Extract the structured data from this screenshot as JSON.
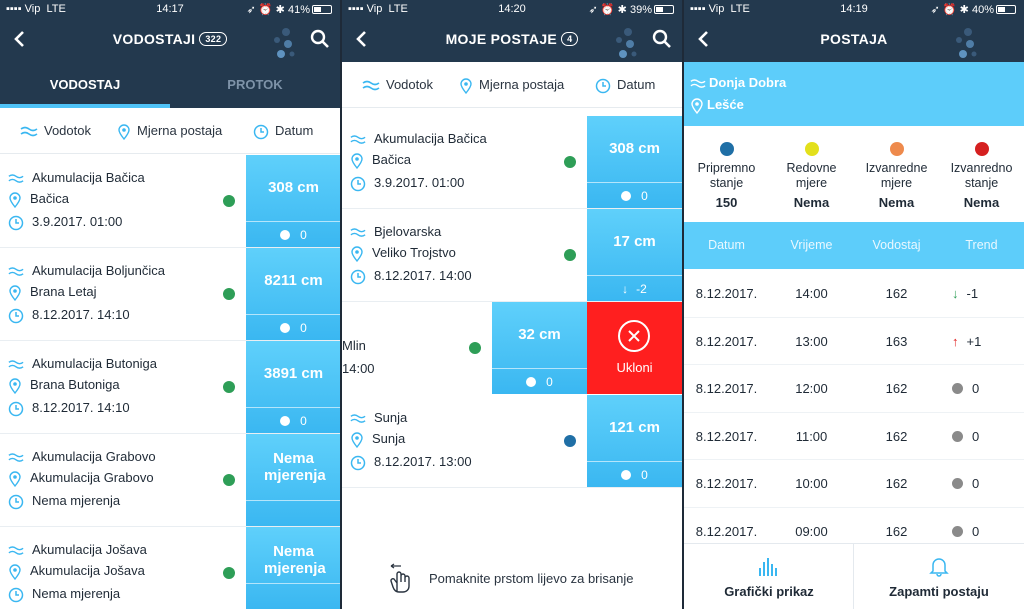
{
  "s1": {
    "status": {
      "carrier": "Vip",
      "network": "LTE",
      "time": "14:17",
      "battery": "41%"
    },
    "title": "VODOSTAJI",
    "count": "322",
    "tabs": [
      "VODOSTAJ",
      "PROTOK"
    ],
    "filters": [
      "Vodotok",
      "Mjerna postaja",
      "Datum"
    ],
    "rows": [
      {
        "river": "Akumulacija Bačica",
        "station": "Bačica",
        "date": "3.9.2017. 01:00",
        "value": "308 cm",
        "trend": "0",
        "status_color": "#2e9e57"
      },
      {
        "river": "Akumulacija Boljunčica",
        "station": "Brana Letaj",
        "date": "8.12.2017. 14:10",
        "value": "8211 cm",
        "trend": "0",
        "status_color": "#2e9e57"
      },
      {
        "river": "Akumulacija Butoniga",
        "station": "Brana Butoniga",
        "date": "8.12.2017. 14:10",
        "value": "3891 cm",
        "trend": "0",
        "status_color": "#2e9e57"
      },
      {
        "river": "Akumulacija Grabovo",
        "station": "Akumulacija Grabovo",
        "date": "Nema mjerenja",
        "value": "Nema mjerenja",
        "trend": "",
        "status_color": "#2e9e57"
      },
      {
        "river": "Akumulacija Jošava",
        "station": "Akumulacija Jošava",
        "date": "Nema mjerenja",
        "value": "Nema mjerenja",
        "trend": "",
        "status_color": "#2e9e57"
      }
    ]
  },
  "s2": {
    "status": {
      "carrier": "Vip",
      "network": "LTE",
      "time": "14:20",
      "battery": "39%"
    },
    "title": "MOJE POSTAJE",
    "count": "4",
    "filters": [
      "Vodotok",
      "Mjerna postaja",
      "Datum"
    ],
    "rows": [
      {
        "river": "Akumulacija Bačica",
        "station": "Bačica",
        "date": "3.9.2017. 01:00",
        "value": "308 cm",
        "trend": "0",
        "status_color": "#2e9e57"
      },
      {
        "river": "Bjelovarska",
        "station": "Veliko Trojstvo",
        "date": "8.12.2017. 14:00",
        "value": "17 cm",
        "trend": "-2",
        "status_color": "#2e9e57"
      },
      {
        "river": "Mlin",
        "station": "",
        "date": "14:00",
        "value": "32 cm",
        "trend": "0",
        "status_color": "#2e9e57"
      },
      {
        "river": "Sunja",
        "station": "Sunja",
        "date": "8.12.2017. 13:00",
        "value": "121 cm",
        "trend": "0",
        "status_color": "#1f6fa6"
      }
    ],
    "remove_label": "Ukloni",
    "hint": "Pomaknite prstom lijevo za brisanje"
  },
  "s3": {
    "status": {
      "carrier": "Vip",
      "network": "LTE",
      "time": "14:19",
      "battery": "40%"
    },
    "title": "POSTAJA",
    "river": "Donja Dobra",
    "station": "Lešće",
    "levels": [
      {
        "label1": "Pripremno",
        "label2": "stanje",
        "value": "150",
        "color": "#1f6fa6"
      },
      {
        "label1": "Redovne",
        "label2": "mjere",
        "value": "Nema",
        "color": "#e3e01c"
      },
      {
        "label1": "Izvanredne",
        "label2": "mjere",
        "value": "Nema",
        "color": "#ee8a4c"
      },
      {
        "label1": "Izvanredno",
        "label2": "stanje",
        "value": "Nema",
        "color": "#d52020"
      }
    ],
    "columns": [
      "Datum",
      "Vrijeme",
      "Vodostaj",
      "Trend"
    ],
    "rows": [
      {
        "date": "8.12.2017.",
        "time": "14:00",
        "level": "162",
        "trend": "-1",
        "dir": "down"
      },
      {
        "date": "8.12.2017.",
        "time": "13:00",
        "level": "163",
        "trend": "+1",
        "dir": "up"
      },
      {
        "date": "8.12.2017.",
        "time": "12:00",
        "level": "162",
        "trend": "0",
        "dir": "flat"
      },
      {
        "date": "8.12.2017.",
        "time": "11:00",
        "level": "162",
        "trend": "0",
        "dir": "flat"
      },
      {
        "date": "8.12.2017.",
        "time": "10:00",
        "level": "162",
        "trend": "0",
        "dir": "flat"
      },
      {
        "date": "8.12.2017.",
        "time": "09:00",
        "level": "162",
        "trend": "0",
        "dir": "flat"
      }
    ],
    "buttons": [
      "Grafički prikaz",
      "Zapamti postaju"
    ]
  }
}
